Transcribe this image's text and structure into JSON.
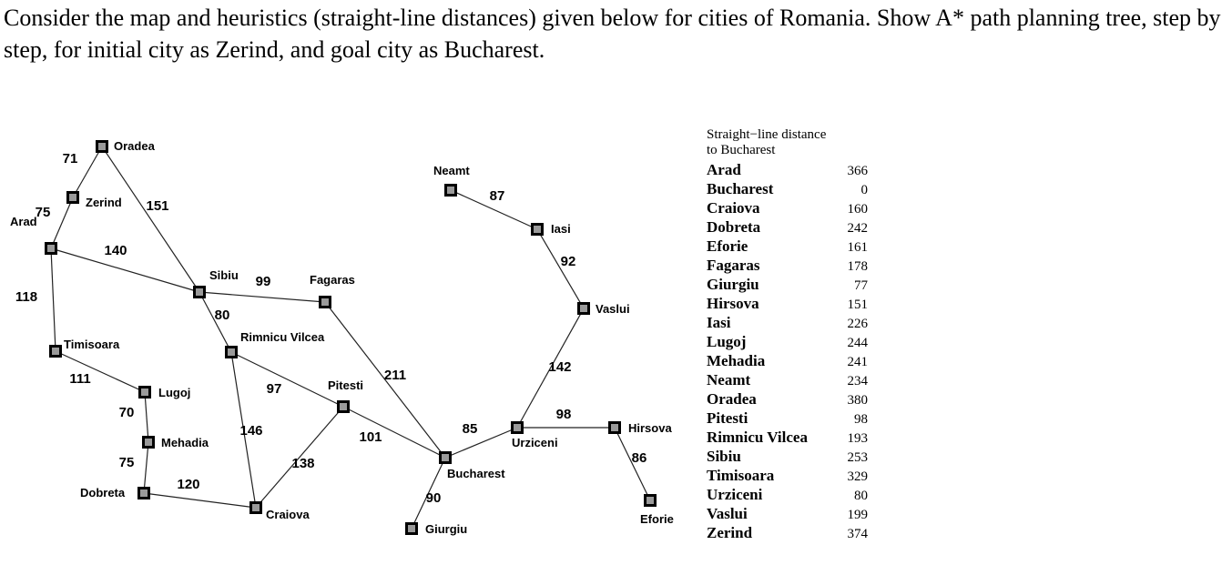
{
  "question": "Consider the map and heuristics (straight-line distances) given below for cities of Romania. Show A* path planning tree, step by step, for initial city as Zerind, and goal city as Bucharest.",
  "map": {
    "cities": [
      {
        "id": "oradea",
        "name": "Oradea"
      },
      {
        "id": "zerind",
        "name": "Zerind"
      },
      {
        "id": "arad",
        "name": "Arad"
      },
      {
        "id": "timisoara",
        "name": "Timisoara"
      },
      {
        "id": "lugoj",
        "name": "Lugoj"
      },
      {
        "id": "mehadia",
        "name": "Mehadia"
      },
      {
        "id": "dobreta",
        "name": "Dobreta"
      },
      {
        "id": "craiova",
        "name": "Craiova"
      },
      {
        "id": "sibiu",
        "name": "Sibiu"
      },
      {
        "id": "fagaras",
        "name": "Fagaras"
      },
      {
        "id": "rimnicu",
        "name": "Rimnicu Vilcea"
      },
      {
        "id": "pitesti",
        "name": "Pitesti"
      },
      {
        "id": "bucharest",
        "name": "Bucharest"
      },
      {
        "id": "giurgiu",
        "name": "Giurgiu"
      },
      {
        "id": "urziceni",
        "name": "Urziceni"
      },
      {
        "id": "hirsova",
        "name": "Hirsova"
      },
      {
        "id": "eforie",
        "name": "Eforie"
      },
      {
        "id": "vaslui",
        "name": "Vaslui"
      },
      {
        "id": "iasi",
        "name": "Iasi"
      },
      {
        "id": "neamt",
        "name": "Neamt"
      }
    ],
    "roads": [
      {
        "from": "oradea",
        "to": "zerind",
        "distance": "71"
      },
      {
        "from": "zerind",
        "to": "arad",
        "distance": "75"
      },
      {
        "from": "oradea",
        "to": "sibiu",
        "distance": "151"
      },
      {
        "from": "arad",
        "to": "sibiu",
        "distance": "140"
      },
      {
        "from": "arad",
        "to": "timisoara",
        "distance": "118"
      },
      {
        "from": "timisoara",
        "to": "lugoj",
        "distance": "111"
      },
      {
        "from": "lugoj",
        "to": "mehadia",
        "distance": "70"
      },
      {
        "from": "mehadia",
        "to": "dobreta",
        "distance": "75"
      },
      {
        "from": "dobreta",
        "to": "craiova",
        "distance": "120"
      },
      {
        "from": "sibiu",
        "to": "fagaras",
        "distance": "99"
      },
      {
        "from": "sibiu",
        "to": "rimnicu",
        "distance": "80"
      },
      {
        "from": "rimnicu",
        "to": "pitesti",
        "distance": "97"
      },
      {
        "from": "rimnicu",
        "to": "craiova",
        "distance": "146"
      },
      {
        "from": "craiova",
        "to": "pitesti",
        "distance": "138"
      },
      {
        "from": "pitesti",
        "to": "bucharest",
        "distance": "101"
      },
      {
        "from": "fagaras",
        "to": "bucharest",
        "distance": "211"
      },
      {
        "from": "bucharest",
        "to": "giurgiu",
        "distance": "90"
      },
      {
        "from": "bucharest",
        "to": "urziceni",
        "distance": "85"
      },
      {
        "from": "urziceni",
        "to": "hirsova",
        "distance": "98"
      },
      {
        "from": "hirsova",
        "to": "eforie",
        "distance": "86"
      },
      {
        "from": "urziceni",
        "to": "vaslui",
        "distance": "142"
      },
      {
        "from": "vaslui",
        "to": "iasi",
        "distance": "92"
      },
      {
        "from": "iasi",
        "to": "neamt",
        "distance": "87"
      }
    ]
  },
  "heuristics": {
    "title_line1": "Straight−line distance",
    "title_line2": "to Bucharest",
    "rows": [
      {
        "city": "Arad",
        "value": "366"
      },
      {
        "city": "Bucharest",
        "value": "0"
      },
      {
        "city": "Craiova",
        "value": "160"
      },
      {
        "city": "Dobreta",
        "value": "242"
      },
      {
        "city": "Eforie",
        "value": "161"
      },
      {
        "city": "Fagaras",
        "value": "178"
      },
      {
        "city": "Giurgiu",
        "value": "77"
      },
      {
        "city": "Hirsova",
        "value": "151"
      },
      {
        "city": "Iasi",
        "value": "226"
      },
      {
        "city": "Lugoj",
        "value": "244"
      },
      {
        "city": "Mehadia",
        "value": "241"
      },
      {
        "city": "Neamt",
        "value": "234"
      },
      {
        "city": "Oradea",
        "value": "380"
      },
      {
        "city": "Pitesti",
        "value": "98"
      },
      {
        "city": "Rimnicu Vilcea",
        "value": "193"
      },
      {
        "city": "Sibiu",
        "value": "253"
      },
      {
        "city": "Timisoara",
        "value": "329"
      },
      {
        "city": "Urziceni",
        "value": "80"
      },
      {
        "city": "Vaslui",
        "value": "199"
      },
      {
        "city": "Zerind",
        "value": "374"
      }
    ]
  }
}
